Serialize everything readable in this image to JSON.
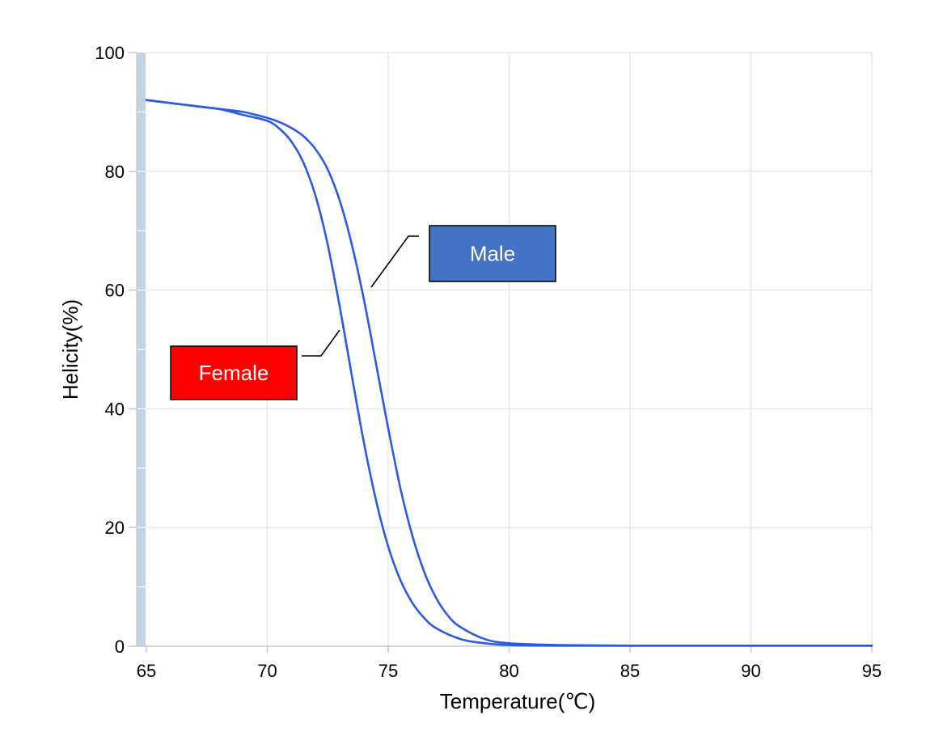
{
  "chart_data": {
    "type": "line",
    "title": "",
    "xlabel": "Temperature(℃)",
    "ylabel": "Helicity(%)",
    "xlim": [
      65,
      95
    ],
    "ylim": [
      0,
      100
    ],
    "xticks": [
      "65",
      "70",
      "75",
      "80",
      "85",
      "90",
      "95"
    ],
    "yticks": [
      "0",
      "20",
      "40",
      "60",
      "80",
      "100"
    ],
    "grid": true,
    "line_color": "#2b5bdf",
    "series": [
      {
        "name": "Male",
        "label_color": "#4472c4",
        "x": [
          65,
          66,
          67,
          68,
          69,
          70,
          70.5,
          71,
          71.5,
          72,
          72.5,
          73,
          73.5,
          74,
          74.5,
          75,
          75.5,
          76,
          76.5,
          77,
          77.5,
          78,
          79,
          80,
          82,
          85,
          90,
          95
        ],
        "y": [
          92,
          91.5,
          91,
          90.5,
          90,
          89,
          88.3,
          87.3,
          85.9,
          83.7,
          80.3,
          75.0,
          67.6,
          58.3,
          47.5,
          36.7,
          26.7,
          18.6,
          12.4,
          8.0,
          5.0,
          3.2,
          1.2,
          0.5,
          0.2,
          0.1,
          0.1,
          0.1
        ]
      },
      {
        "name": "Female",
        "label_color": "#ff0000",
        "x": [
          65,
          66,
          67,
          68,
          69,
          70,
          70.5,
          71,
          71.5,
          72,
          72.5,
          73,
          73.5,
          74,
          74.5,
          75,
          75.5,
          76,
          76.5,
          77,
          78,
          79,
          80,
          82,
          85,
          90,
          95
        ],
        "y": [
          92,
          91.5,
          91,
          90.5,
          89.5,
          88.5,
          87.2,
          85.0,
          81.4,
          75.8,
          67.6,
          57.1,
          45.5,
          34.2,
          24.5,
          16.8,
          11.2,
          7.3,
          4.7,
          3.0,
          1.2,
          0.5,
          0.2,
          0.1,
          0.1,
          0.1,
          0.1
        ]
      }
    ]
  }
}
